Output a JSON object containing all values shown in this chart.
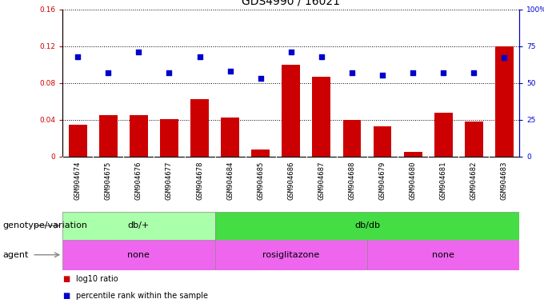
{
  "title": "GDS4990 / 16021",
  "samples": [
    "GSM904674",
    "GSM904675",
    "GSM904676",
    "GSM904677",
    "GSM904678",
    "GSM904684",
    "GSM904685",
    "GSM904686",
    "GSM904687",
    "GSM904688",
    "GSM904679",
    "GSM904680",
    "GSM904681",
    "GSM904682",
    "GSM904683"
  ],
  "log10_ratio": [
    0.035,
    0.045,
    0.045,
    0.041,
    0.062,
    0.042,
    0.008,
    0.1,
    0.087,
    0.04,
    0.033,
    0.005,
    0.048,
    0.038,
    0.12
  ],
  "percentile_pct": [
    68,
    57,
    71,
    57,
    68,
    58,
    53,
    71,
    68,
    57,
    55,
    57,
    57,
    57,
    67
  ],
  "bar_color": "#cc0000",
  "dot_color": "#0000cc",
  "ylim_left": [
    0,
    0.16
  ],
  "ylim_right": [
    0,
    100
  ],
  "yticks_left": [
    0,
    0.04,
    0.08,
    0.12,
    0.16
  ],
  "yticks_right": [
    0,
    25,
    50,
    75,
    100
  ],
  "ytick_labels_left": [
    "0",
    "0.04",
    "0.08",
    "0.12",
    "0.16"
  ],
  "ytick_labels_right": [
    "0",
    "25",
    "50",
    "75",
    "100%"
  ],
  "genotype_groups": [
    {
      "label": "db/+",
      "start": 0,
      "end": 4,
      "color": "#aaffaa"
    },
    {
      "label": "db/db",
      "start": 5,
      "end": 14,
      "color": "#44dd44"
    }
  ],
  "agent_group_defs": [
    {
      "label": "none",
      "start": 0,
      "end": 4
    },
    {
      "label": "rosiglitazone",
      "start": 5,
      "end": 9
    },
    {
      "label": "none",
      "start": 10,
      "end": 14
    }
  ],
  "agent_color": "#ee66ee",
  "legend_items": [
    {
      "label": "log10 ratio",
      "color": "#cc0000"
    },
    {
      "label": "percentile rank within the sample",
      "color": "#0000cc"
    }
  ],
  "genotype_label": "genotype/variation",
  "agent_label": "agent",
  "title_fontsize": 10,
  "tick_fontsize": 6.5,
  "label_fontsize": 8
}
